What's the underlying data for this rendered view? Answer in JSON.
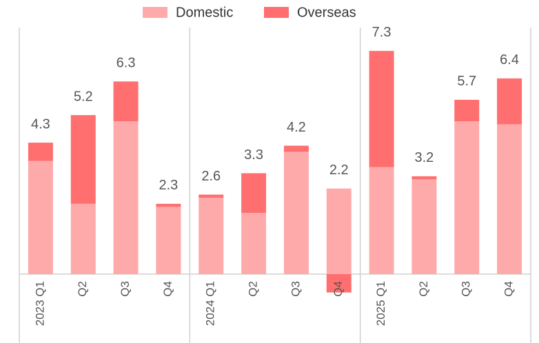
{
  "chart_data": {
    "type": "stacked_bar",
    "categories": [
      "2023 Q1",
      "Q2",
      "Q3",
      "Q4",
      "2024 Q1",
      "Q2",
      "Q3",
      "Q4",
      "2025 Q1",
      "Q2",
      "Q3",
      "Q4"
    ],
    "series": [
      {
        "name": "Domestic",
        "color": "#ffaaaa",
        "values": [
          3.7,
          2.3,
          5.0,
          2.2,
          2.5,
          2.0,
          4.0,
          2.8,
          3.5,
          3.1,
          5.0,
          4.9
        ]
      },
      {
        "name": "Overseas",
        "color": "#ff6f6f",
        "values": [
          0.6,
          2.9,
          1.3,
          0.1,
          0.1,
          1.3,
          0.2,
          -0.6,
          3.8,
          0.1,
          0.7,
          1.5
        ]
      }
    ],
    "totals": [
      4.3,
      5.2,
      6.3,
      2.3,
      2.6,
      3.3,
      4.2,
      2.2,
      7.3,
      3.2,
      5.7,
      6.4
    ],
    "legend": "top"
  }
}
